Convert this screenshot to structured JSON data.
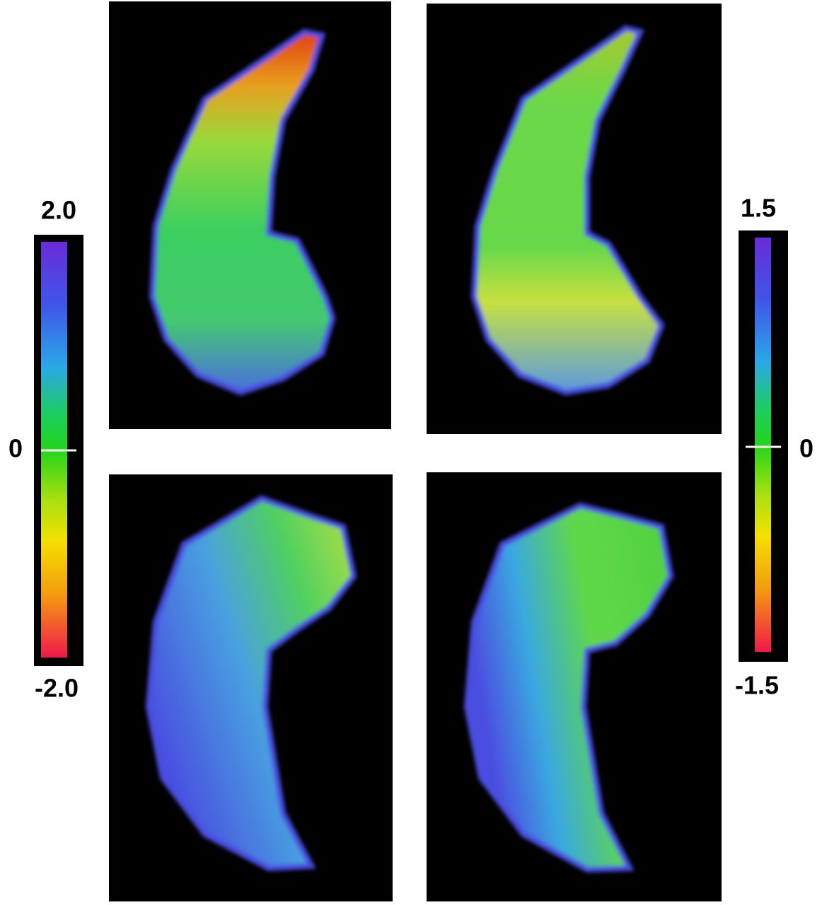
{
  "colorbars": [
    {
      "max": "2.0",
      "mid": "0",
      "min": "-2.0"
    },
    {
      "max": "1.5",
      "mid": "0",
      "min": "-1.5"
    }
  ]
}
